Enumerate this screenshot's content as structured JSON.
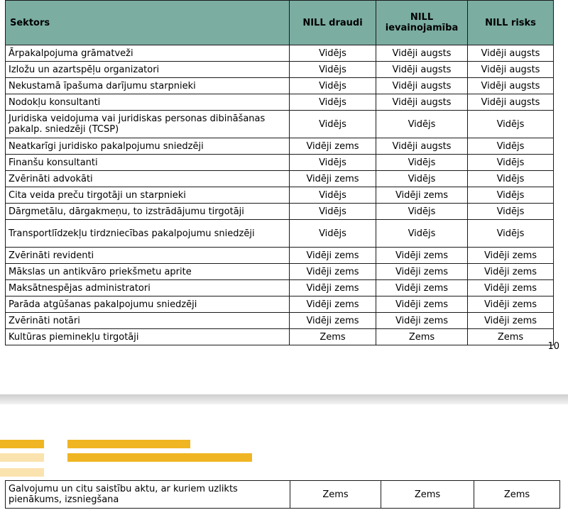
{
  "table": {
    "headers": [
      "Sektors",
      "NILL draudi",
      "NILL ievainojamība",
      "NILL risks"
    ],
    "rows": [
      [
        "Ārpakalpojuma grāmatveži",
        "Vidējs",
        "Vidēji augsts",
        "Vidēji augsts"
      ],
      [
        "Izložu un azartspēļu organizatori",
        "Vidējs",
        "Vidēji augsts",
        "Vidēji augsts"
      ],
      [
        "Nekustamā īpašuma darījumu starpnieki",
        "Vidējs",
        "Vidēji augsts",
        "Vidēji augsts"
      ],
      [
        "Nodokļu konsultanti",
        "Vidējs",
        "Vidēji augsts",
        "Vidēji augsts"
      ],
      [
        "Juridiska veidojuma vai juridiskas personas dibināšanas pakalp. sniedzēji (TCSP)",
        "Vidējs",
        "Vidējs",
        "Vidējs"
      ],
      [
        "Neatkarīgi juridisko pakalpojumu sniedzēji",
        "Vidēji zems",
        "Vidēji augsts",
        "Vidējs"
      ],
      [
        "Finanšu konsultanti",
        "Vidējs",
        "Vidējs",
        "Vidējs"
      ],
      [
        "Zvērināti advokāti",
        "Vidēji zems",
        "Vidējs",
        "Vidējs"
      ],
      [
        "Cita veida preču tirgotāji un starpnieki",
        "Vidējs",
        "Vidēji zems",
        "Vidējs"
      ],
      [
        "Dārgmetālu, dārgakmeņu, to izstrādājumu tirgotāji",
        "Vidējs",
        "Vidējs",
        "Vidējs"
      ],
      [
        "Transportlīdzekļu tirdzniecības pakalpojumu sniedzēji",
        "Vidējs",
        "Vidējs",
        "Vidējs"
      ],
      [
        "Zvērināti revidenti",
        "Vidēji zems",
        "Vidēji zems",
        "Vidēji zems"
      ],
      [
        "Mākslas un antikvāro priekšmetu aprite",
        "Vidēji zems",
        "Vidēji zems",
        "Vidēji zems"
      ],
      [
        "Maksātnespējas administratori",
        "Vidēji zems",
        "Vidēji zems",
        "Vidēji zems"
      ],
      [
        "Parāda atgūšanas pakalpojumu sniedzēji",
        "Vidēji zems",
        "Vidēji zems",
        "Vidēji zems"
      ],
      [
        "Zvērināti notāri",
        "Vidēji zems",
        "Vidēji zems",
        "Vidēji zems"
      ],
      [
        "Kultūras pieminekļu tirgotāji",
        "Zems",
        "Zems",
        "Zems"
      ]
    ],
    "continued_rows": [
      [
        "Galvojumu un citu saistību aktu, ar kuriem uzlikts pienākums, izsniegšana",
        "Zems",
        "Zems",
        "Zems"
      ]
    ]
  },
  "page_number": "10",
  "colors": {
    "header_bg": "#7bada1",
    "bar_dark": "#f0b522",
    "bar_light": "#fbe3b0"
  }
}
